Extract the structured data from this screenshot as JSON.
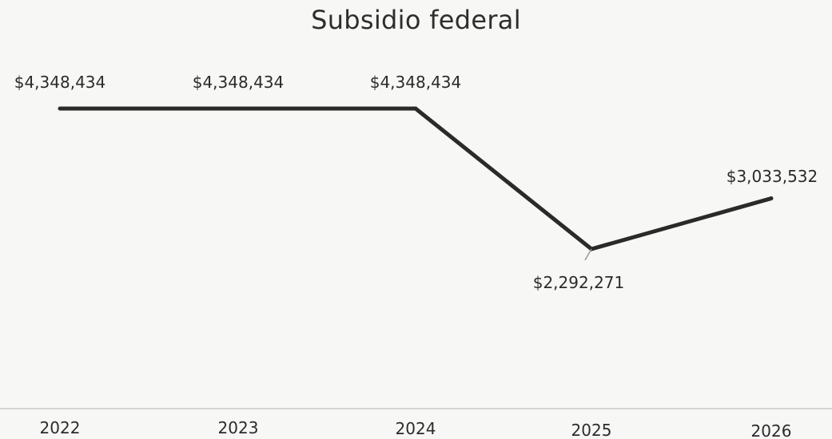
{
  "chart_data": {
    "type": "line",
    "title": "Subsidio federal",
    "xlabel": "",
    "ylabel": "",
    "categories": [
      "2022",
      "2023",
      "2024",
      "2025",
      "2026"
    ],
    "series": [
      {
        "values": [
          4348434,
          4348434,
          4348434,
          2292271,
          3033532
        ],
        "color": "#2a2a2a"
      }
    ],
    "data_labels": [
      "$4,348,434",
      "$4,348,434",
      "$4,348,434",
      "$2,292,271",
      "$3,033,532"
    ],
    "ylim": [
      0,
      5000000
    ],
    "grid": false,
    "legend": "none"
  },
  "colors": {
    "background": "#f7f7f5",
    "line": "#2a2a2a",
    "axis": "#c9c9c9",
    "text": "#2b2b2b"
  }
}
